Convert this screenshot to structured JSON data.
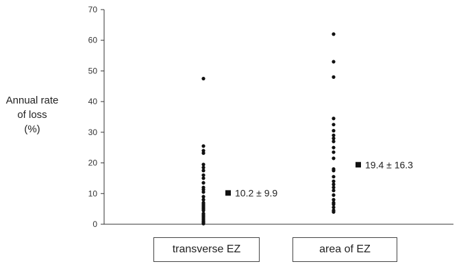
{
  "chart_data": {
    "type": "scatter",
    "ylabel_lines": [
      "Annual rate",
      "of loss",
      "(%)"
    ],
    "xlabel": "",
    "ylim": [
      0,
      70
    ],
    "yticks": [
      0,
      10,
      20,
      30,
      40,
      50,
      60,
      70
    ],
    "grid": false,
    "legend": "none",
    "categories": [
      "transverse EZ",
      "area of EZ"
    ],
    "marker_color": "#111111",
    "series": [
      {
        "category": "transverse EZ",
        "points": [
          47.5,
          25.5,
          24.0,
          23.2,
          19.5,
          18.5,
          17.5,
          16.0,
          15.0,
          13.5,
          12.0,
          11.3,
          10.5,
          9.0,
          8.0,
          7.0,
          6.5,
          6.0,
          5.5,
          5.0,
          4.5,
          3.5,
          3.0,
          2.5,
          2.0,
          1.5,
          1.0,
          0.8,
          0.5,
          0.2
        ],
        "mean": 10.2,
        "sd": 9.9,
        "summary_label": "10.2 ± 9.9"
      },
      {
        "category": "area of EZ",
        "points": [
          62.0,
          53.0,
          48.0,
          34.5,
          32.5,
          30.5,
          29.0,
          28.0,
          27.0,
          25.0,
          23.5,
          21.5,
          18.0,
          17.5,
          15.5,
          14.0,
          13.0,
          12.0,
          11.0,
          9.5,
          8.0,
          7.0,
          6.5,
          5.5,
          4.5,
          4.0
        ],
        "mean": 19.4,
        "sd": 16.3,
        "summary_label": "19.4 ± 16.3"
      }
    ]
  }
}
